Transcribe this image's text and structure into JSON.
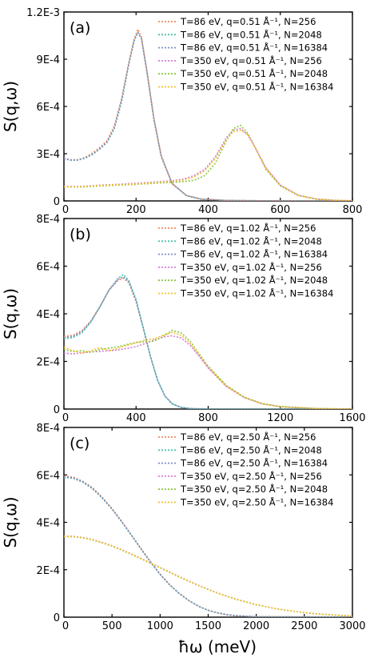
{
  "figure": {
    "xlabel": "ħω (meV)",
    "ylabel": "S(q,ω)"
  },
  "chart_data": [
    {
      "panel": "(a)",
      "type": "line",
      "xlim": [
        0,
        800
      ],
      "xticks": [
        0,
        200,
        400,
        600,
        800
      ],
      "xtick_labels": [
        "0",
        "200",
        "400",
        "600",
        "800"
      ],
      "ylim": [
        0,
        0.0012
      ],
      "yticks": [
        0,
        0.0003,
        0.0006,
        0.0009,
        0.0012
      ],
      "ytick_labels": [
        "0",
        "3E-4",
        "6E-4",
        "9E-4",
        "1.2E-3"
      ],
      "ylabel": "S(q,ω)",
      "legend_position": "top-right",
      "series": [
        {
          "name": "T=86 eV, q=0.51 Å⁻¹, N=256",
          "color": "#f08a5d",
          "x": [
            0,
            20,
            40,
            60,
            80,
            100,
            120,
            140,
            160,
            180,
            195,
            205,
            215,
            230,
            250,
            270,
            300,
            340,
            380,
            450,
            550,
            800
          ],
          "y": [
            0.00027,
            0.000262,
            0.000262,
            0.000278,
            0.000305,
            0.00034,
            0.000385,
            0.00048,
            0.00065,
            0.00088,
            0.00103,
            0.00109,
            0.00104,
            0.00083,
            0.00052,
            0.00029,
            0.00011,
            3.5e-05,
            1.2e-05,
            3e-06,
            1e-06,
            0
          ]
        },
        {
          "name": "T=86 eV, q=0.51 Å⁻¹, N=2048",
          "color": "#4cc2a8",
          "x": [
            0,
            20,
            40,
            60,
            80,
            100,
            120,
            140,
            160,
            180,
            195,
            205,
            215,
            230,
            250,
            270,
            300,
            340,
            380,
            450,
            550,
            800
          ],
          "y": [
            0.000268,
            0.000258,
            0.00026,
            0.000272,
            0.000296,
            0.00033,
            0.000372,
            0.00046,
            0.00063,
            0.00087,
            0.00102,
            0.00107,
            0.00103,
            0.00082,
            0.00051,
            0.00028,
            0.00011,
            3.3e-05,
            1.1e-05,
            3e-06,
            1e-06,
            0
          ]
        },
        {
          "name": "T=86 eV, q=0.51 Å⁻¹, N=16384",
          "color": "#7a8fc4",
          "x": [
            0,
            20,
            40,
            60,
            80,
            100,
            120,
            140,
            160,
            180,
            195,
            205,
            215,
            230,
            250,
            270,
            300,
            340,
            380,
            450,
            550,
            800
          ],
          "y": [
            0.000268,
            0.00026,
            0.00026,
            0.000274,
            0.000298,
            0.000332,
            0.000375,
            0.000465,
            0.00064,
            0.00087,
            0.00102,
            0.00107,
            0.00103,
            0.00082,
            0.00051,
            0.00028,
            0.00011,
            3.3e-05,
            1.1e-05,
            3e-06,
            1e-06,
            0
          ]
        },
        {
          "name": "T=350 eV, q=0.51 Å⁻¹, N=256",
          "color": "#d67ad6",
          "x": [
            0,
            50,
            100,
            150,
            200,
            250,
            300,
            330,
            360,
            390,
            420,
            450,
            470,
            490,
            510,
            530,
            560,
            600,
            650,
            700,
            750,
            800
          ],
          "y": [
            9.2e-05,
            9.2e-05,
            0.0001,
            0.000105,
            0.000112,
            0.00012,
            0.000128,
            0.000138,
            0.00016,
            0.0002,
            0.00028,
            0.0004,
            0.00045,
            0.00046,
            0.00042,
            0.00034,
            0.00021,
            0.0001,
            3.6e-05,
            1.2e-05,
            4e-06,
            1e-06
          ]
        },
        {
          "name": "T=350 eV, q=0.51 Å⁻¹, N=2048",
          "color": "#8cc63f",
          "x": [
            0,
            50,
            100,
            150,
            200,
            250,
            300,
            330,
            360,
            390,
            420,
            450,
            470,
            490,
            510,
            530,
            560,
            600,
            650,
            700,
            750,
            800
          ],
          "y": [
            9e-05,
            8.8e-05,
            9.5e-05,
            0.0001,
            0.000105,
            0.000112,
            0.000118,
            0.000122,
            0.00013,
            0.00016,
            0.00024,
            0.00038,
            0.00046,
            0.00048,
            0.00043,
            0.00034,
            0.0002,
            9.5e-05,
            3.4e-05,
            1.1e-05,
            3e-06,
            1e-06
          ]
        },
        {
          "name": "T=350 eV, q=0.51 Å⁻¹, N=16384",
          "color": "#f2c12e",
          "x": [
            0,
            50,
            100,
            150,
            200,
            250,
            300,
            330,
            360,
            390,
            420,
            450,
            470,
            490,
            510,
            530,
            560,
            600,
            650,
            700,
            750,
            800
          ],
          "y": [
            9e-05,
            9e-05,
            9.8e-05,
            0.000103,
            0.000108,
            0.000116,
            0.000124,
            0.000132,
            0.000152,
            0.00019,
            0.00027,
            0.00039,
            0.00044,
            0.00045,
            0.00042,
            0.00034,
            0.00021,
            0.0001,
            3.6e-05,
            1.2e-05,
            4e-06,
            1e-06
          ]
        }
      ]
    },
    {
      "panel": "(b)",
      "type": "line",
      "xlim": [
        0,
        1600
      ],
      "xticks": [
        0,
        400,
        800,
        1200,
        1600
      ],
      "xtick_labels": [
        "0",
        "400",
        "800",
        "1200",
        "1600"
      ],
      "ylim": [
        0,
        0.0008
      ],
      "yticks": [
        0,
        0.0002,
        0.0004,
        0.0006,
        0.0008
      ],
      "ytick_labels": [
        "0",
        "2E-4",
        "4E-4",
        "6E-4",
        "8E-4"
      ],
      "ylabel": "S(q,ω)",
      "legend_position": "top-right",
      "series": [
        {
          "name": "T=86 eV, q=1.02 Å⁻¹, N=256",
          "color": "#f08a5d",
          "x": [
            0,
            50,
            100,
            150,
            200,
            250,
            300,
            330,
            360,
            400,
            440,
            480,
            520,
            560,
            600,
            650,
            700,
            800,
            1000,
            1600
          ],
          "y": [
            0.000305,
            0.00031,
            0.00033,
            0.00037,
            0.00043,
            0.0005,
            0.00054,
            0.00055,
            0.00053,
            0.00045,
            0.00034,
            0.00022,
            0.00012,
            5.5e-05,
            2.2e-05,
            7e-06,
            2e-06,
            0,
            0,
            0
          ]
        },
        {
          "name": "T=86 eV, q=1.02 Å⁻¹, N=2048",
          "color": "#4cc2a8",
          "x": [
            0,
            50,
            100,
            150,
            200,
            250,
            300,
            330,
            360,
            400,
            440,
            480,
            520,
            560,
            600,
            650,
            700,
            800,
            1000,
            1600
          ],
          "y": [
            0.000295,
            0.0003,
            0.00032,
            0.000365,
            0.00043,
            0.0005,
            0.00055,
            0.000565,
            0.00054,
            0.00046,
            0.00034,
            0.00022,
            0.00012,
            5.5e-05,
            2.2e-05,
            7e-06,
            2e-06,
            0,
            0,
            0
          ]
        },
        {
          "name": "T=86 eV, q=1.02 Å⁻¹, N=16384",
          "color": "#7a8fc4",
          "x": [
            0,
            50,
            100,
            150,
            200,
            250,
            300,
            330,
            360,
            400,
            440,
            480,
            520,
            560,
            600,
            650,
            700,
            800,
            1000,
            1600
          ],
          "y": [
            0.0003,
            0.000305,
            0.000325,
            0.000368,
            0.00043,
            0.0005,
            0.000545,
            0.000555,
            0.000535,
            0.000455,
            0.00034,
            0.00022,
            0.00012,
            5.5e-05,
            2.2e-05,
            7e-06,
            2e-06,
            0,
            0,
            0
          ]
        },
        {
          "name": "T=350 eV, q=1.02 Å⁻¹, N=256",
          "color": "#d67ad6",
          "x": [
            0,
            50,
            100,
            150,
            200,
            300,
            400,
            450,
            500,
            550,
            600,
            650,
            700,
            750,
            800,
            900,
            1000,
            1100,
            1200,
            1400,
            1600
          ],
          "y": [
            0.000235,
            0.000232,
            0.000236,
            0.00024,
            0.000242,
            0.000248,
            0.000262,
            0.000275,
            0.00029,
            0.000302,
            0.000308,
            0.000298,
            0.000268,
            0.000222,
            0.000172,
            9.5e-05,
            4.8e-05,
            2.2e-05,
            1e-05,
            2e-06,
            0
          ]
        },
        {
          "name": "T=350 eV, q=1.02 Å⁻¹, N=2048",
          "color": "#8cc63f",
          "x": [
            0,
            50,
            100,
            150,
            200,
            300,
            400,
            450,
            500,
            550,
            600,
            650,
            700,
            750,
            800,
            900,
            1000,
            1100,
            1200,
            1400,
            1600
          ],
          "y": [
            0.00025,
            0.000242,
            0.000245,
            0.000238,
            0.00025,
            0.000262,
            0.00028,
            0.000282,
            0.000285,
            0.000305,
            0.00033,
            0.00032,
            0.000285,
            0.000232,
            0.00018,
            0.0001,
            5e-05,
            2.3e-05,
            1e-05,
            2e-06,
            0
          ]
        },
        {
          "name": "T=350 eV, q=1.02 Å⁻¹, N=16384",
          "color": "#f2c12e",
          "x": [
            0,
            50,
            100,
            150,
            200,
            250,
            300,
            350,
            400,
            450,
            500,
            550,
            600,
            650,
            700,
            750,
            800,
            900,
            1000,
            1100,
            1200,
            1400,
            1600
          ],
          "y": [
            0.00026,
            0.000245,
            0.000235,
            0.000245,
            0.000258,
            0.000245,
            0.000255,
            0.000268,
            0.000278,
            0.00029,
            0.000295,
            0.00031,
            0.000322,
            0.00031,
            0.000275,
            0.000225,
            0.000175,
            9.7e-05,
            4.9e-05,
            2.2e-05,
            1e-05,
            2e-06,
            0
          ]
        }
      ]
    },
    {
      "panel": "(c)",
      "type": "line",
      "xlim": [
        0,
        3000
      ],
      "xticks": [
        0,
        500,
        1000,
        1500,
        2000,
        2500,
        3000
      ],
      "xtick_labels": [
        "0",
        "500",
        "1000",
        "1500",
        "2000",
        "2500",
        "3000"
      ],
      "xlabel": "ħω (meV)",
      "ylim": [
        0,
        0.0008
      ],
      "yticks": [
        0,
        0.0002,
        0.0004,
        0.0006,
        0.0008
      ],
      "ytick_labels": [
        "0",
        "2E-4",
        "4E-4",
        "6E-4",
        "8E-4"
      ],
      "ylabel": "S(q,ω)",
      "legend_position": "top-right",
      "series": [
        {
          "name": "T=86 eV, q=2.50 Å⁻¹, N=256",
          "color": "#f08a5d",
          "x": [
            0,
            100,
            200,
            300,
            400,
            500,
            600,
            700,
            800,
            900,
            1000,
            1100,
            1200,
            1300,
            1400,
            1500,
            1600,
            1700,
            1800,
            2000,
            3000
          ],
          "y": [
            0.000595,
            0.00059,
            0.000572,
            0.000545,
            0.000505,
            0.000458,
            0.000405,
            0.000348,
            0.00029,
            0.000234,
            0.000182,
            0.000137,
            0.0001,
            7e-05,
            4.6e-05,
            2.9e-05,
            1.8e-05,
            1e-05,
            6e-06,
            2e-06,
            0
          ]
        },
        {
          "name": "T=86 eV, q=2.50 Å⁻¹, N=2048",
          "color": "#4cc2a8",
          "x": [
            0,
            100,
            200,
            300,
            400,
            500,
            600,
            700,
            800,
            900,
            1000,
            1100,
            1200,
            1300,
            1400,
            1500,
            1600,
            1700,
            1800,
            2000,
            3000
          ],
          "y": [
            0.00059,
            0.000585,
            0.000568,
            0.00054,
            0.000501,
            0.000455,
            0.000402,
            0.000346,
            0.000288,
            0.000232,
            0.00018,
            0.000136,
            9.9e-05,
            7e-05,
            4.6e-05,
            2.9e-05,
            1.8e-05,
            1e-05,
            6e-06,
            2e-06,
            0
          ]
        },
        {
          "name": "T=86 eV, q=2.50 Å⁻¹, N=16384",
          "color": "#7a8fc4",
          "x": [
            0,
            100,
            200,
            300,
            400,
            500,
            600,
            700,
            800,
            900,
            1000,
            1100,
            1200,
            1300,
            1400,
            1500,
            1600,
            1700,
            1800,
            2000,
            3000
          ],
          "y": [
            0.000592,
            0.000587,
            0.00057,
            0.000542,
            0.000503,
            0.000456,
            0.000403,
            0.000347,
            0.000289,
            0.000233,
            0.000181,
            0.000136,
            0.0001,
            7e-05,
            4.6e-05,
            2.9e-05,
            1.8e-05,
            1e-05,
            6e-06,
            2e-06,
            0
          ]
        },
        {
          "name": "T=350 eV, q=2.50 Å⁻¹, N=256",
          "color": "#d67ad6",
          "x": [
            0,
            100,
            200,
            300,
            400,
            500,
            600,
            700,
            800,
            900,
            1000,
            1200,
            1400,
            1600,
            1800,
            2000,
            2200,
            2400,
            2600,
            2800,
            3000
          ],
          "y": [
            0.000342,
            0.000341,
            0.000336,
            0.000327,
            0.000315,
            0.000301,
            0.000285,
            0.000267,
            0.000248,
            0.000229,
            0.00021,
            0.000171,
            0.000134,
            0.000102,
            7.5e-05,
            5.3e-05,
            3.6e-05,
            2.4e-05,
            1.5e-05,
            9e-06,
            5e-06
          ]
        },
        {
          "name": "T=350 eV, q=2.50 Å⁻¹, N=2048",
          "color": "#8cc63f",
          "x": [
            0,
            100,
            200,
            300,
            400,
            500,
            600,
            700,
            800,
            900,
            1000,
            1200,
            1400,
            1600,
            1800,
            2000,
            2200,
            2400,
            2600,
            2800,
            3000
          ],
          "y": [
            0.00034,
            0.000339,
            0.000334,
            0.000325,
            0.000313,
            0.000299,
            0.000283,
            0.000265,
            0.000246,
            0.000227,
            0.000208,
            0.000169,
            0.000133,
            0.000101,
            7.4e-05,
            5.2e-05,
            3.6e-05,
            2.4e-05,
            1.5e-05,
            9e-06,
            5e-06
          ]
        },
        {
          "name": "T=350 eV, q=2.50 Å⁻¹, N=16384",
          "color": "#f2c12e",
          "x": [
            0,
            100,
            200,
            300,
            400,
            500,
            600,
            700,
            800,
            900,
            1000,
            1200,
            1400,
            1600,
            1800,
            2000,
            2200,
            2400,
            2600,
            2800,
            3000
          ],
          "y": [
            0.000341,
            0.00034,
            0.000335,
            0.000326,
            0.000314,
            0.0003,
            0.000284,
            0.000266,
            0.000247,
            0.000228,
            0.000209,
            0.00017,
            0.000133,
            0.000101,
            7.5e-05,
            5.3e-05,
            3.6e-05,
            2.4e-05,
            1.5e-05,
            9e-06,
            5e-06
          ]
        }
      ]
    }
  ]
}
